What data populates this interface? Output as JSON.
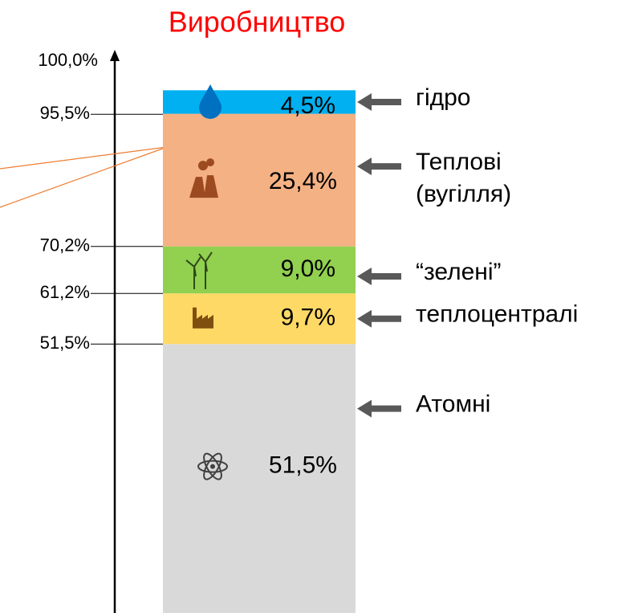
{
  "chart_data": {
    "type": "stacked_bar",
    "title": "Виробництво",
    "series": [
      {
        "name": "Атомні",
        "color": "#d9d9d9",
        "values": [
          51.5
        ],
        "value_labels": [
          "51,5%"
        ]
      },
      {
        "name": "теплоцентралі",
        "color": "#ffd966",
        "values": [
          9.7
        ],
        "value_labels": [
          "9,7%"
        ]
      },
      {
        "name": "“зелені”",
        "color": "#92d050",
        "values": [
          9.0
        ],
        "value_labels": [
          "9,0%"
        ]
      },
      {
        "name": "Теплові (вугілля)",
        "color": "#f4b183",
        "values": [
          25.4
        ],
        "value_labels": [
          "25,4%"
        ]
      },
      {
        "name": "гідро",
        "color": "#00b0f0",
        "values": [
          4.5
        ],
        "value_labels": [
          "4,5%"
        ]
      }
    ],
    "ylim": [
      0,
      100
    ],
    "yticks": [
      {
        "value": 51.5,
        "label": "51,5%"
      },
      {
        "value": 61.2,
        "label": "61,2%"
      },
      {
        "value": 70.2,
        "label": "70,2%"
      },
      {
        "value": 95.5,
        "label": "95,5%"
      },
      {
        "value": 100,
        "label": "100,0%"
      }
    ]
  }
}
